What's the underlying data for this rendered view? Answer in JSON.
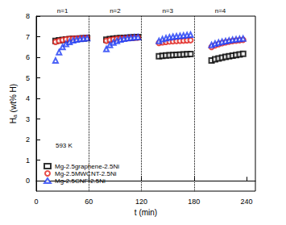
{
  "chart_data": {
    "type": "scatter",
    "x_label": "t (min)",
    "y_label": "Hₐ (wt% H)",
    "xlim": [
      0,
      250
    ],
    "xticks": [
      0,
      60,
      120,
      180,
      240
    ],
    "ylim": [
      -0.5,
      8
    ],
    "yticks": [
      0,
      1,
      2,
      3,
      4,
      5,
      6,
      7,
      8
    ],
    "grid": false,
    "legend": "lower left",
    "dividers": [
      60,
      120,
      180
    ],
    "segment_labels": [
      {
        "text": "n=1",
        "x": 30
      },
      {
        "text": "n=2",
        "x": 90
      },
      {
        "text": "n=3",
        "x": 150
      },
      {
        "text": "n=4",
        "x": 210
      }
    ],
    "annotations": [
      {
        "text": "593 K",
        "x": 22,
        "y": 1.7
      }
    ],
    "x": [
      22,
      26,
      30,
      34,
      38,
      42,
      46,
      50,
      54,
      58,
      80,
      84,
      88,
      92,
      96,
      100,
      104,
      108,
      112,
      116,
      140,
      144,
      148,
      152,
      156,
      160,
      164,
      168,
      172,
      176,
      200,
      204,
      208,
      212,
      216,
      220,
      224,
      228,
      232,
      236
    ],
    "series": [
      {
        "name": "Mg-2.5graphene-2.5Ni",
        "color": "#000000",
        "marker": "square",
        "values": [
          6.8,
          6.82,
          6.84,
          6.86,
          6.88,
          6.89,
          6.9,
          6.91,
          6.92,
          6.93,
          6.85,
          6.88,
          6.9,
          6.92,
          6.93,
          6.94,
          6.95,
          6.96,
          6.97,
          6.98,
          6.05,
          6.07,
          6.09,
          6.1,
          6.11,
          6.12,
          6.13,
          6.14,
          6.15,
          6.16,
          5.85,
          5.9,
          5.94,
          5.98,
          6.02,
          6.05,
          6.08,
          6.11,
          6.14,
          6.17
        ]
      },
      {
        "name": "Mg-2.5MWCNT-2.5Ni",
        "color": "#e0201b",
        "marker": "circle",
        "values": [
          6.75,
          6.8,
          6.84,
          6.87,
          6.89,
          6.9,
          6.91,
          6.92,
          6.93,
          6.94,
          6.8,
          6.84,
          6.87,
          6.89,
          6.91,
          6.92,
          6.93,
          6.94,
          6.95,
          6.96,
          6.7,
          6.73,
          6.75,
          6.77,
          6.78,
          6.79,
          6.8,
          6.81,
          6.82,
          6.83,
          6.5,
          6.58,
          6.64,
          6.69,
          6.73,
          6.76,
          6.79,
          6.81,
          6.83,
          6.85
        ]
      },
      {
        "name": "Mg-2.5CNF-2.5Ni",
        "color": "#1f3cf5",
        "marker": "triangle",
        "values": [
          5.85,
          6.25,
          6.5,
          6.65,
          6.75,
          6.82,
          6.86,
          6.89,
          6.91,
          6.93,
          6.4,
          6.6,
          6.72,
          6.8,
          6.86,
          6.9,
          6.93,
          6.95,
          6.97,
          6.98,
          6.8,
          6.88,
          6.93,
          6.97,
          7.0,
          7.02,
          7.04,
          7.06,
          7.08,
          7.1,
          6.6,
          6.67,
          6.72,
          6.76,
          6.79,
          6.82,
          6.85,
          6.87,
          6.89,
          6.91
        ]
      }
    ]
  }
}
